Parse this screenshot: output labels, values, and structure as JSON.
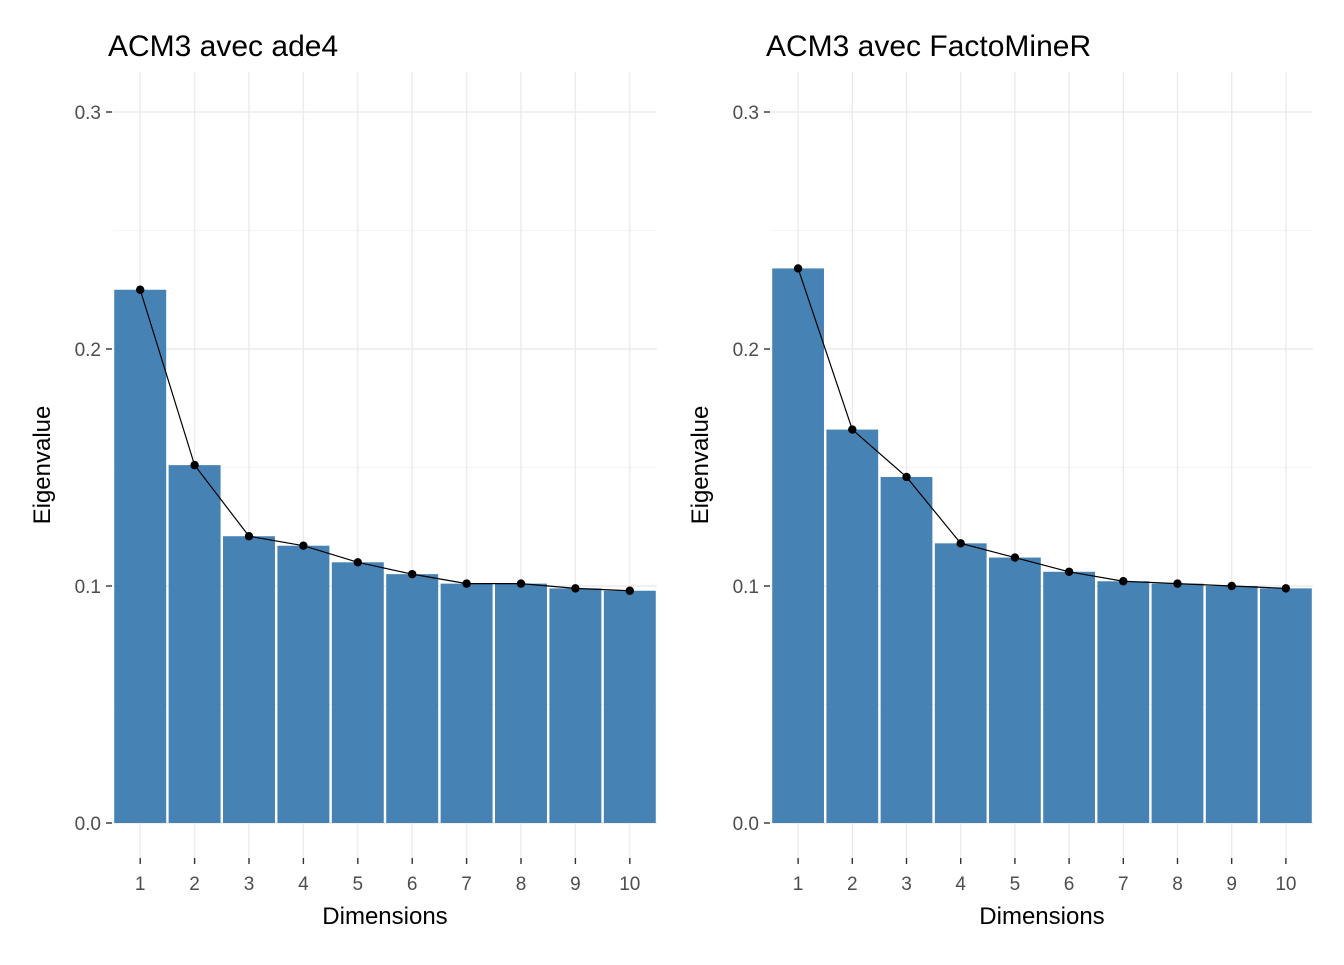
{
  "chart_data": [
    {
      "type": "bar",
      "title": "ACM3 avec ade4",
      "xlabel": "Dimensions",
      "ylabel": "Eigenvalue",
      "categories": [
        "1",
        "2",
        "3",
        "4",
        "5",
        "6",
        "7",
        "8",
        "9",
        "10"
      ],
      "values": [
        0.225,
        0.151,
        0.121,
        0.117,
        0.11,
        0.105,
        0.101,
        0.101,
        0.099,
        0.098
      ],
      "overlay": "line-with-points",
      "ylim": [
        0,
        0.3
      ],
      "yticks": [
        "0.0",
        "0.1",
        "0.2",
        "0.3"
      ],
      "ytick_values": [
        0,
        0.1,
        0.2,
        0.3
      ],
      "bar_color": "#4682b4",
      "line_color": "#000000",
      "grid": true
    },
    {
      "type": "bar",
      "title": "ACM3 avec FactoMineR",
      "xlabel": "Dimensions",
      "ylabel": "Eigenvalue",
      "categories": [
        "1",
        "2",
        "3",
        "4",
        "5",
        "6",
        "7",
        "8",
        "9",
        "10"
      ],
      "values": [
        0.234,
        0.166,
        0.146,
        0.118,
        0.112,
        0.106,
        0.102,
        0.101,
        0.1,
        0.099
      ],
      "overlay": "line-with-points",
      "ylim": [
        0,
        0.3
      ],
      "yticks": [
        "0.0",
        "0.1",
        "0.2",
        "0.3"
      ],
      "ytick_values": [
        0,
        0.1,
        0.2,
        0.3
      ],
      "bar_color": "#4682b4",
      "line_color": "#000000",
      "grid": true
    }
  ]
}
